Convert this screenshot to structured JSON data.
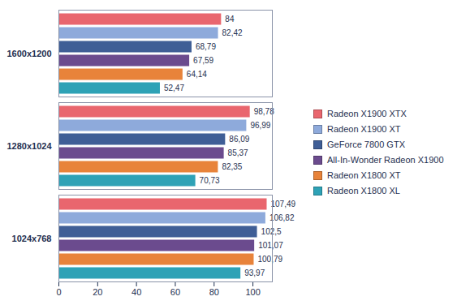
{
  "chart_data": {
    "type": "bar",
    "orientation": "horizontal",
    "categories": [
      "1600x1200",
      "1280x1024",
      "1024x768"
    ],
    "series": [
      {
        "name": "Radeon X1900 XTX",
        "color": "#e9666e",
        "values": [
          84,
          98.78,
          107.49
        ],
        "value_labels": [
          "84",
          "98,78",
          "107,49"
        ]
      },
      {
        "name": "Radeon X1900 XT",
        "color": "#8eaadb",
        "values": [
          82.42,
          96.99,
          106.82
        ],
        "value_labels": [
          "82,42",
          "96,99",
          "106,82"
        ]
      },
      {
        "name": "GeForce 7800 GTX",
        "color": "#3f5e96",
        "values": [
          68.79,
          86.09,
          102.5
        ],
        "value_labels": [
          "68,79",
          "86,09",
          "102,5"
        ]
      },
      {
        "name": "All-In-Wonder Radeon X1900",
        "color": "#6b4b8e",
        "values": [
          67.59,
          85.37,
          101.07
        ],
        "value_labels": [
          "67,59",
          "85,37",
          "101,07"
        ]
      },
      {
        "name": "Radeon X1800 XT",
        "color": "#e8833a",
        "values": [
          64.14,
          82.35,
          100.79
        ],
        "value_labels": [
          "64,14",
          "82,35",
          "100,79"
        ]
      },
      {
        "name": "Radeon X1800 XL",
        "color": "#2ea2b6",
        "values": [
          52.47,
          70.73,
          93.97
        ],
        "value_labels": [
          "52,47",
          "70,73",
          "93,97"
        ]
      }
    ],
    "xlim": [
      0,
      110
    ],
    "xticks": [
      0,
      20,
      40,
      60,
      80,
      100
    ],
    "grid": false,
    "data_labels": true,
    "legend": "right"
  }
}
